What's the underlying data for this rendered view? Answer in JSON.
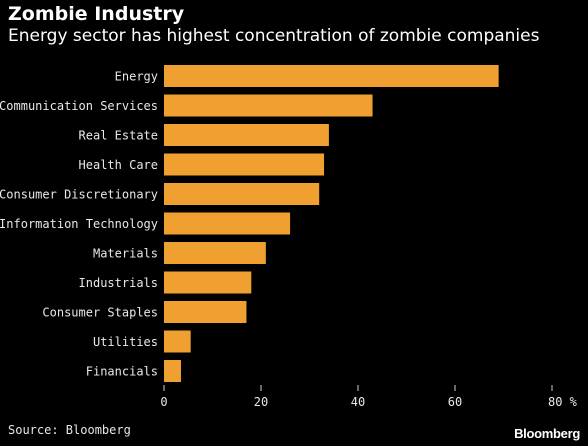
{
  "header": {
    "title": "Zombie Industry",
    "subtitle": "Energy sector has highest concentration of zombie companies"
  },
  "footer": {
    "source": "Source: Bloomberg",
    "brand": "Bloomberg"
  },
  "colors": {
    "background": "#000000",
    "bar": "#f0a030",
    "text": "#ffffff"
  },
  "chart_data": {
    "type": "bar",
    "orientation": "horizontal",
    "title": "Zombie Industry",
    "subtitle": "Energy sector has highest concentration of zombie companies",
    "categories": [
      "Energy",
      "Communication Services",
      "Real Estate",
      "Health Care",
      "Consumer Discretionary",
      "Information Technology",
      "Materials",
      "Industrials",
      "Consumer Staples",
      "Utilities",
      "Financials"
    ],
    "values": [
      69,
      43,
      34,
      33,
      32,
      26,
      21,
      18,
      17,
      5.5,
      3.5
    ],
    "xlim": [
      0,
      80
    ],
    "xticks": [
      0,
      20,
      40,
      60,
      80
    ],
    "xtick_labels": [
      "0",
      "20",
      "40",
      "60",
      "80 %"
    ],
    "unit": "%",
    "grid": false,
    "legend": "none"
  }
}
